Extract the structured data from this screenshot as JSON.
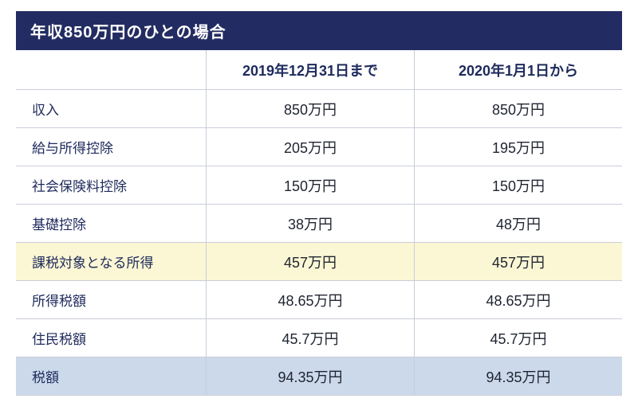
{
  "chart_data": {
    "type": "table",
    "title": "年収850万円のひとの場合",
    "columns": [
      "2019年12月31日まで",
      "2020年1月1日から"
    ],
    "rows": [
      {
        "label": "収入",
        "before": "850万円",
        "after": "850万円",
        "highlight": "none"
      },
      {
        "label": "給与所得控除",
        "before": "205万円",
        "after": "195万円",
        "highlight": "none"
      },
      {
        "label": "社会保険料控除",
        "before": "150万円",
        "after": "150万円",
        "highlight": "none"
      },
      {
        "label": "基礎控除",
        "before": "38万円",
        "after": "48万円",
        "highlight": "none"
      },
      {
        "label": "課税対象となる所得",
        "before": "457万円",
        "after": "457万円",
        "highlight": "yellow"
      },
      {
        "label": "所得税額",
        "before": "48.65万円",
        "after": "48.65万円",
        "highlight": "none"
      },
      {
        "label": "住民税額",
        "before": "45.7万円",
        "after": "45.7万円",
        "highlight": "none"
      },
      {
        "label": "税額",
        "before": "94.35万円",
        "after": "94.35万円",
        "highlight": "blue"
      }
    ]
  },
  "colors": {
    "header_bg": "#232c62",
    "text_navy": "#1e2a5c",
    "value_color": "#1f2430",
    "highlight_yellow": "#fbf7d4",
    "highlight_blue": "#ccd9ea",
    "border": "#c9ced9"
  }
}
